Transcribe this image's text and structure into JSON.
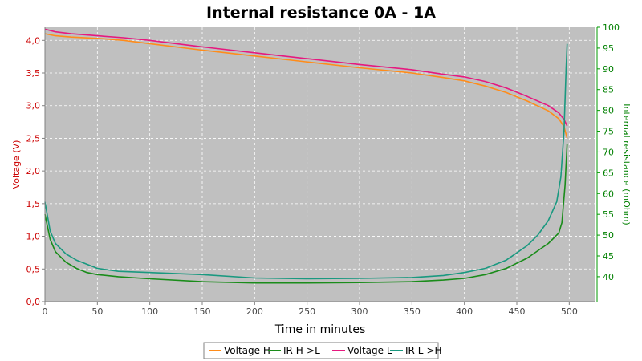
{
  "chart_data": {
    "type": "line",
    "title": "Internal resistance  0A - 1A",
    "xlabel": "Time in minutes",
    "ylabel_left": "Voltage (V)",
    "ylabel_right": "Internal resistance (mOhm)",
    "xlim": [
      0,
      525
    ],
    "ylim_left": [
      0,
      4.2
    ],
    "ylim_right": [
      34,
      100
    ],
    "x_ticks": [
      0,
      50,
      100,
      150,
      200,
      250,
      300,
      350,
      400,
      450,
      500
    ],
    "y_left_ticks": [
      "0,0",
      "0,5",
      "1,0",
      "1,5",
      "2,0",
      "2,5",
      "3,0",
      "3,5",
      "4,0"
    ],
    "y_left_tick_values": [
      0,
      0.5,
      1.0,
      1.5,
      2.0,
      2.5,
      3.0,
      3.5,
      4.0
    ],
    "y_right_ticks": [
      "40",
      "45",
      "50",
      "55",
      "60",
      "65",
      "70",
      "75",
      "80",
      "85",
      "90",
      "95",
      "100"
    ],
    "y_right_tick_values": [
      40,
      45,
      50,
      55,
      60,
      65,
      70,
      75,
      80,
      85,
      90,
      95,
      100
    ],
    "grid": true,
    "legend_position": "bottom",
    "colors": {
      "voltage_axis": "#cc0000",
      "ir_axis": "#008000",
      "plot_bg": "#c0c0c0"
    },
    "series": [
      {
        "name": "Voltage H",
        "axis": "left",
        "color": "#ff8c1a",
        "x": [
          0,
          10,
          25,
          50,
          75,
          100,
          150,
          200,
          250,
          300,
          350,
          380,
          400,
          420,
          440,
          460,
          480,
          490,
          495,
          498
        ],
        "y": [
          4.1,
          4.07,
          4.05,
          4.03,
          4.0,
          3.95,
          3.85,
          3.76,
          3.67,
          3.58,
          3.5,
          3.43,
          3.38,
          3.3,
          3.2,
          3.07,
          2.92,
          2.8,
          2.68,
          2.5
        ]
      },
      {
        "name": "IR H->L",
        "axis": "right",
        "color": "#1a8c1a",
        "x": [
          0,
          5,
          10,
          20,
          30,
          40,
          50,
          70,
          100,
          150,
          200,
          250,
          300,
          350,
          380,
          400,
          420,
          440,
          460,
          480,
          490,
          493,
          496,
          498
        ],
        "y": [
          55,
          49,
          46,
          43.5,
          42,
          41,
          40.5,
          40,
          39.5,
          38.8,
          38.5,
          38.5,
          38.6,
          38.8,
          39.2,
          39.6,
          40.5,
          42,
          44.5,
          48,
          50.5,
          53,
          62,
          72
        ]
      },
      {
        "name": "Voltage L",
        "axis": "left",
        "color": "#e6197f",
        "x": [
          0,
          10,
          25,
          50,
          75,
          100,
          150,
          200,
          250,
          300,
          350,
          380,
          400,
          420,
          440,
          460,
          480,
          490,
          495,
          498
        ],
        "y": [
          4.17,
          4.13,
          4.1,
          4.07,
          4.04,
          4.0,
          3.9,
          3.81,
          3.72,
          3.63,
          3.55,
          3.48,
          3.44,
          3.37,
          3.27,
          3.14,
          3.0,
          2.89,
          2.79,
          2.69
        ]
      },
      {
        "name": "IR L->H",
        "axis": "right",
        "color": "#1a9980",
        "x": [
          0,
          5,
          10,
          20,
          30,
          40,
          50,
          70,
          100,
          150,
          200,
          250,
          300,
          350,
          380,
          400,
          420,
          440,
          460,
          470,
          480,
          488,
          492,
          495,
          497,
          498
        ],
        "y": [
          58,
          51,
          48,
          45.5,
          44,
          43,
          42,
          41.3,
          41,
          40.5,
          39.7,
          39.5,
          39.6,
          39.8,
          40.3,
          41,
          42,
          44,
          47.5,
          50,
          53.5,
          58,
          64,
          75,
          90,
          96
        ]
      }
    ]
  }
}
